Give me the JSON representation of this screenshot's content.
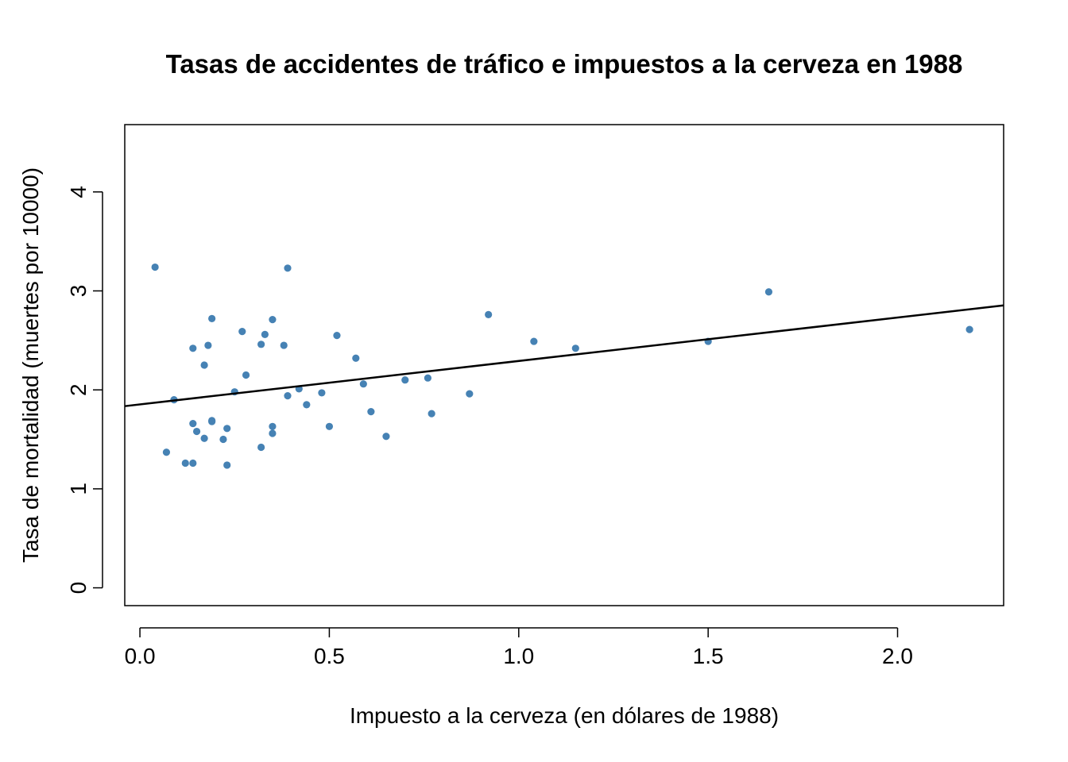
{
  "chart_data": {
    "type": "scatter",
    "title": "Tasas de accidentes de tráfico e impuestos a la cerveza en 1988",
    "xlabel": "Impuesto a la cerveza (en dólares de 1988)",
    "ylabel": "Tasa de mortalidad (muertes por 10000)",
    "xlim": [
      -0.04,
      2.28
    ],
    "ylim": [
      -0.18,
      4.68
    ],
    "x_ticks": [
      0.0,
      0.5,
      1.0,
      1.5,
      2.0
    ],
    "x_tick_labels": [
      "0.0",
      "0.5",
      "1.0",
      "1.5",
      "2.0"
    ],
    "y_ticks": [
      0,
      1,
      2,
      3,
      4
    ],
    "y_tick_labels": [
      "0",
      "1",
      "2",
      "3",
      "4"
    ],
    "grid": false,
    "point_color": "#4682b4",
    "line_color": "#000000",
    "regression_line": {
      "intercept": 1.853,
      "slope": 0.439
    },
    "points": [
      {
        "x": 0.04,
        "y": 3.24
      },
      {
        "x": 0.07,
        "y": 1.37
      },
      {
        "x": 0.09,
        "y": 1.9
      },
      {
        "x": 0.12,
        "y": 1.26
      },
      {
        "x": 0.14,
        "y": 1.26
      },
      {
        "x": 0.14,
        "y": 1.66
      },
      {
        "x": 0.14,
        "y": 2.42
      },
      {
        "x": 0.15,
        "y": 1.58
      },
      {
        "x": 0.17,
        "y": 1.51
      },
      {
        "x": 0.17,
        "y": 2.25
      },
      {
        "x": 0.18,
        "y": 2.45
      },
      {
        "x": 0.19,
        "y": 1.69
      },
      {
        "x": 0.19,
        "y": 1.68
      },
      {
        "x": 0.19,
        "y": 2.72
      },
      {
        "x": 0.22,
        "y": 1.5
      },
      {
        "x": 0.23,
        "y": 1.24
      },
      {
        "x": 0.23,
        "y": 1.61
      },
      {
        "x": 0.25,
        "y": 1.98
      },
      {
        "x": 0.27,
        "y": 2.59
      },
      {
        "x": 0.28,
        "y": 2.15
      },
      {
        "x": 0.32,
        "y": 1.42
      },
      {
        "x": 0.32,
        "y": 2.46
      },
      {
        "x": 0.33,
        "y": 2.56
      },
      {
        "x": 0.35,
        "y": 1.56
      },
      {
        "x": 0.35,
        "y": 1.63
      },
      {
        "x": 0.35,
        "y": 2.71
      },
      {
        "x": 0.38,
        "y": 2.45
      },
      {
        "x": 0.39,
        "y": 3.23
      },
      {
        "x": 0.39,
        "y": 1.94
      },
      {
        "x": 0.42,
        "y": 2.01
      },
      {
        "x": 0.44,
        "y": 1.85
      },
      {
        "x": 0.48,
        "y": 1.97
      },
      {
        "x": 0.5,
        "y": 1.63
      },
      {
        "x": 0.52,
        "y": 2.55
      },
      {
        "x": 0.57,
        "y": 2.32
      },
      {
        "x": 0.59,
        "y": 2.06
      },
      {
        "x": 0.61,
        "y": 1.78
      },
      {
        "x": 0.65,
        "y": 1.53
      },
      {
        "x": 0.7,
        "y": 2.1
      },
      {
        "x": 0.76,
        "y": 2.12
      },
      {
        "x": 0.77,
        "y": 1.76
      },
      {
        "x": 0.87,
        "y": 1.96
      },
      {
        "x": 0.92,
        "y": 2.76
      },
      {
        "x": 1.04,
        "y": 2.49
      },
      {
        "x": 1.15,
        "y": 2.42
      },
      {
        "x": 1.5,
        "y": 2.49
      },
      {
        "x": 1.66,
        "y": 2.99
      },
      {
        "x": 2.19,
        "y": 2.61
      }
    ]
  }
}
